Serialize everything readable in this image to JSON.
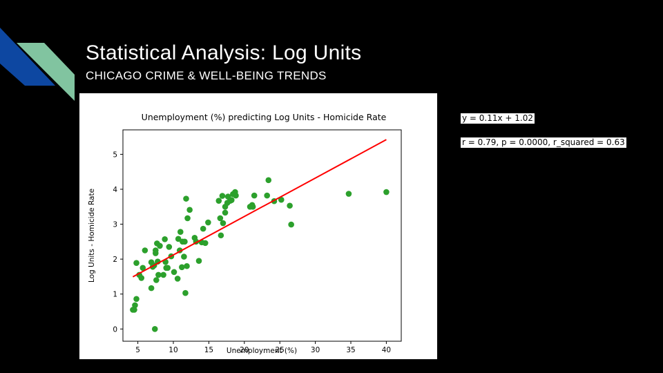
{
  "slide": {
    "title": "Statistical Analysis: Log Units",
    "subtitle": "CHICAGO CRIME & WELL-BEING TRENDS"
  },
  "colors": {
    "background": "#000000",
    "accent_blue": "#0d47a1",
    "accent_green": "#81c4a0",
    "point": "#2ca02c",
    "regression_line": "#ff0000"
  },
  "regression": {
    "equation": "y = 0.11x + 1.02",
    "stats": "r = 0.79, p = 0.0000, r_squared = 0.63"
  },
  "chart_data": {
    "type": "scatter",
    "title": "Unemployment (%) predicting Log Units - Homicide Rate",
    "xlabel": "Unemployment (%)",
    "ylabel": "Log Units - Homicide Rate",
    "xlim": [
      2.9,
      42.1
    ],
    "ylim": [
      -0.35,
      5.7
    ],
    "xticks": [
      5,
      10,
      15,
      20,
      25,
      30,
      35,
      40
    ],
    "yticks": [
      0,
      1,
      2,
      3,
      4,
      5
    ],
    "grid": false,
    "regression_line": {
      "slope": 0.11,
      "intercept": 1.02,
      "x_range": [
        4.3,
        40
      ]
    },
    "points": [
      [
        4.3,
        0.55
      ],
      [
        4.5,
        0.55
      ],
      [
        4.6,
        0.68
      ],
      [
        4.8,
        0.86
      ],
      [
        4.8,
        1.89
      ],
      [
        5.2,
        1.55
      ],
      [
        5.5,
        1.46
      ],
      [
        5.7,
        1.75
      ],
      [
        6.0,
        2.25
      ],
      [
        6.9,
        1.17
      ],
      [
        6.9,
        1.91
      ],
      [
        7.1,
        1.78
      ],
      [
        7.3,
        1.82
      ],
      [
        7.4,
        0.0
      ],
      [
        7.5,
        2.17
      ],
      [
        7.5,
        2.25
      ],
      [
        7.6,
        1.4
      ],
      [
        7.7,
        2.45
      ],
      [
        7.8,
        1.93
      ],
      [
        7.9,
        1.55
      ],
      [
        8.1,
        2.38
      ],
      [
        8.6,
        1.55
      ],
      [
        8.8,
        2.57
      ],
      [
        8.9,
        1.92
      ],
      [
        9.0,
        1.75
      ],
      [
        9.2,
        1.75
      ],
      [
        9.4,
        2.35
      ],
      [
        9.7,
        2.08
      ],
      [
        10.1,
        1.63
      ],
      [
        10.6,
        1.44
      ],
      [
        10.7,
        2.58
      ],
      [
        10.9,
        2.25
      ],
      [
        11.0,
        2.78
      ],
      [
        11.2,
        1.77
      ],
      [
        11.3,
        2.5
      ],
      [
        11.5,
        2.07
      ],
      [
        11.6,
        2.5
      ],
      [
        11.7,
        1.03
      ],
      [
        11.8,
        3.73
      ],
      [
        11.9,
        1.8
      ],
      [
        12.0,
        3.17
      ],
      [
        12.3,
        3.41
      ],
      [
        13.0,
        2.61
      ],
      [
        13.2,
        2.5
      ],
      [
        13.6,
        1.95
      ],
      [
        14.0,
        2.48
      ],
      [
        14.2,
        2.87
      ],
      [
        14.5,
        2.46
      ],
      [
        14.9,
        3.05
      ],
      [
        16.4,
        3.67
      ],
      [
        16.6,
        3.17
      ],
      [
        16.7,
        2.68
      ],
      [
        16.9,
        3.81
      ],
      [
        17.0,
        3.03
      ],
      [
        17.3,
        3.5
      ],
      [
        17.3,
        3.33
      ],
      [
        17.6,
        3.61
      ],
      [
        17.7,
        3.79
      ],
      [
        18.0,
        3.67
      ],
      [
        18.2,
        3.69
      ],
      [
        18.4,
        3.86
      ],
      [
        18.7,
        3.92
      ],
      [
        18.8,
        3.82
      ],
      [
        20.8,
        3.5
      ],
      [
        21.1,
        3.55
      ],
      [
        21.2,
        3.5
      ],
      [
        21.4,
        3.82
      ],
      [
        23.2,
        3.82
      ],
      [
        23.4,
        4.26
      ],
      [
        24.2,
        3.66
      ],
      [
        25.2,
        3.7
      ],
      [
        26.4,
        3.53
      ],
      [
        26.6,
        2.99
      ],
      [
        34.7,
        3.87
      ],
      [
        40.0,
        3.92
      ]
    ]
  }
}
